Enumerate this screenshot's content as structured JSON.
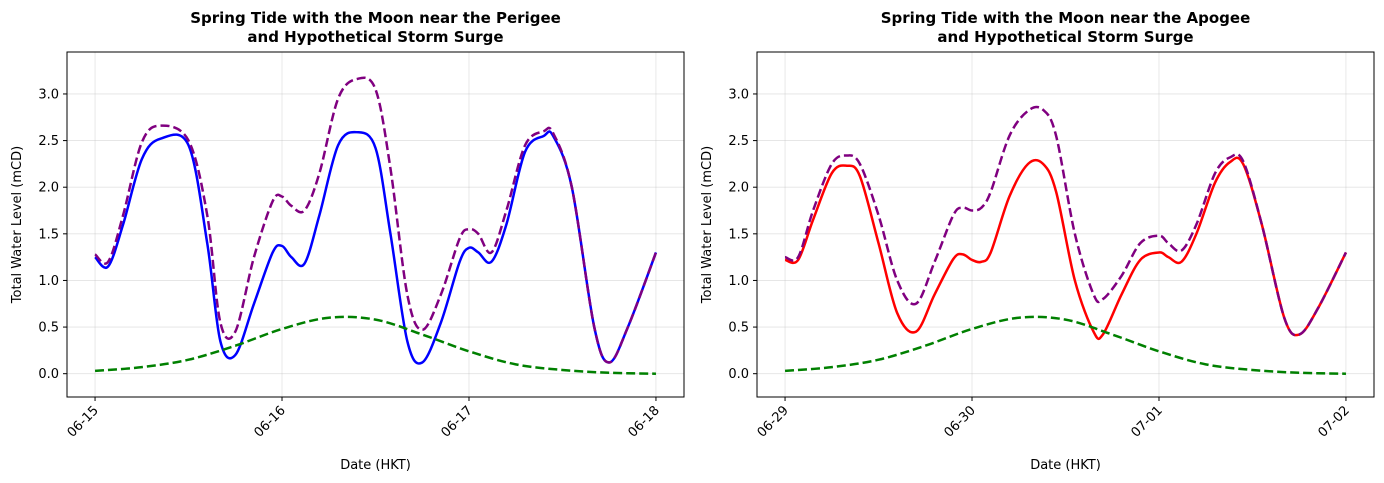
{
  "chart_data": [
    {
      "type": "line",
      "title": [
        "Spring Tide with the Moon near the Perigee",
        "and Hypothetical Storm Surge"
      ],
      "xlabel": "Date (HKT)",
      "ylabel": "Total Water Level (mCD)",
      "xlim": [
        -0.15,
        3.15
      ],
      "ylim": [
        -0.25,
        3.45
      ],
      "grid": true,
      "x_ticks": [
        0,
        1,
        2,
        3
      ],
      "x_tick_labels": [
        "06-15",
        "06-16",
        "06-17",
        "06-18"
      ],
      "y_ticks": [
        0.0,
        0.5,
        1.0,
        1.5,
        2.0,
        2.5,
        3.0
      ],
      "y_tick_labels": [
        "0.0",
        "0.5",
        "1.0",
        "1.5",
        "2.0",
        "2.5",
        "3.0"
      ],
      "series": [
        {
          "color": "#0000ff",
          "dash": "solid",
          "x": [
            0,
            0.07,
            0.15,
            0.25,
            0.35,
            0.5,
            0.6,
            0.67,
            0.75,
            0.85,
            0.95,
            1.0,
            1.05,
            1.12,
            1.2,
            1.3,
            1.4,
            1.5,
            1.58,
            1.67,
            1.75,
            1.85,
            1.95,
            2.0,
            2.05,
            2.12,
            2.2,
            2.3,
            2.4,
            2.45,
            2.55,
            2.67,
            2.75,
            2.85,
            3.0
          ],
          "y": [
            1.25,
            1.15,
            1.6,
            2.3,
            2.52,
            2.45,
            1.4,
            0.35,
            0.2,
            0.75,
            1.3,
            1.37,
            1.25,
            1.18,
            1.7,
            2.45,
            2.59,
            2.42,
            1.5,
            0.35,
            0.12,
            0.55,
            1.2,
            1.35,
            1.3,
            1.2,
            1.6,
            2.38,
            2.55,
            2.55,
            2.0,
            0.5,
            0.12,
            0.5,
            1.3
          ]
        },
        {
          "color": "#800080",
          "dash": "dashed",
          "x": [
            0,
            0.07,
            0.15,
            0.25,
            0.35,
            0.5,
            0.6,
            0.67,
            0.75,
            0.85,
            0.95,
            1.0,
            1.05,
            1.12,
            1.2,
            1.3,
            1.4,
            1.5,
            1.58,
            1.67,
            1.75,
            1.85,
            1.95,
            2.0,
            2.05,
            2.12,
            2.2,
            2.3,
            2.4,
            2.45,
            2.55,
            2.67,
            2.75,
            2.85,
            3.0
          ],
          "y": [
            1.28,
            1.2,
            1.7,
            2.48,
            2.66,
            2.5,
            1.7,
            0.55,
            0.45,
            1.25,
            1.85,
            1.9,
            1.8,
            1.75,
            2.15,
            2.95,
            3.16,
            3.05,
            2.2,
            0.85,
            0.47,
            0.85,
            1.45,
            1.55,
            1.5,
            1.3,
            1.75,
            2.45,
            2.6,
            2.58,
            2.0,
            0.5,
            0.12,
            0.5,
            1.3
          ]
        },
        {
          "color": "#008000",
          "dash": "dashed",
          "x": [
            0,
            0.25,
            0.5,
            0.75,
            1.0,
            1.25,
            1.5,
            1.75,
            2.0,
            2.25,
            2.5,
            2.75,
            3.0
          ],
          "y": [
            0.03,
            0.07,
            0.15,
            0.3,
            0.48,
            0.6,
            0.58,
            0.42,
            0.24,
            0.1,
            0.04,
            0.01,
            0.0
          ]
        }
      ]
    },
    {
      "type": "line",
      "title": [
        "Spring Tide with the Moon near the Apogee",
        "and Hypothetical Storm Surge"
      ],
      "xlabel": "Date (HKT)",
      "ylabel": "Total Water Level (mCD)",
      "xlim": [
        -0.15,
        3.15
      ],
      "ylim": [
        -0.25,
        3.45
      ],
      "grid": true,
      "x_ticks": [
        0,
        1,
        2,
        3
      ],
      "x_tick_labels": [
        "06-29",
        "06-30",
        "07-01",
        "07-02"
      ],
      "y_ticks": [
        0.0,
        0.5,
        1.0,
        1.5,
        2.0,
        2.5,
        3.0
      ],
      "y_tick_labels": [
        "0.0",
        "0.5",
        "1.0",
        "1.5",
        "2.0",
        "2.5",
        "3.0"
      ],
      "series": [
        {
          "color": "#ff0000",
          "dash": "solid",
          "x": [
            0,
            0.07,
            0.15,
            0.25,
            0.33,
            0.4,
            0.5,
            0.6,
            0.7,
            0.8,
            0.9,
            0.95,
            1.0,
            1.05,
            1.1,
            1.2,
            1.3,
            1.38,
            1.45,
            1.55,
            1.65,
            1.7,
            1.8,
            1.9,
            2.0,
            2.05,
            2.12,
            2.2,
            2.3,
            2.38,
            2.45,
            2.55,
            2.67,
            2.75,
            2.85,
            3.0
          ],
          "y": [
            1.22,
            1.22,
            1.65,
            2.15,
            2.23,
            2.12,
            1.4,
            0.65,
            0.45,
            0.85,
            1.23,
            1.28,
            1.22,
            1.2,
            1.3,
            1.9,
            2.25,
            2.25,
            1.95,
            1.0,
            0.45,
            0.42,
            0.85,
            1.22,
            1.3,
            1.25,
            1.2,
            1.5,
            2.05,
            2.27,
            2.25,
            1.6,
            0.6,
            0.42,
            0.7,
            1.3
          ]
        },
        {
          "color": "#800080",
          "dash": "dashed",
          "x": [
            0,
            0.07,
            0.15,
            0.25,
            0.33,
            0.4,
            0.5,
            0.6,
            0.7,
            0.8,
            0.9,
            0.95,
            1.0,
            1.05,
            1.1,
            1.2,
            1.3,
            1.38,
            1.45,
            1.55,
            1.65,
            1.7,
            1.8,
            1.9,
            2.0,
            2.05,
            2.12,
            2.2,
            2.3,
            2.38,
            2.45,
            2.55,
            2.67,
            2.75,
            2.85,
            3.0
          ],
          "y": [
            1.25,
            1.25,
            1.75,
            2.25,
            2.34,
            2.25,
            1.7,
            1.0,
            0.75,
            1.2,
            1.7,
            1.78,
            1.75,
            1.78,
            1.95,
            2.55,
            2.82,
            2.83,
            2.55,
            1.5,
            0.85,
            0.8,
            1.05,
            1.4,
            1.48,
            1.4,
            1.32,
            1.6,
            2.15,
            2.32,
            2.28,
            1.6,
            0.6,
            0.42,
            0.7,
            1.3
          ]
        },
        {
          "color": "#008000",
          "dash": "dashed",
          "x": [
            0,
            0.25,
            0.5,
            0.75,
            1.0,
            1.25,
            1.5,
            1.75,
            2.0,
            2.25,
            2.5,
            2.75,
            3.0
          ],
          "y": [
            0.03,
            0.07,
            0.15,
            0.3,
            0.48,
            0.6,
            0.58,
            0.42,
            0.24,
            0.1,
            0.04,
            0.01,
            0.0
          ]
        }
      ]
    }
  ]
}
